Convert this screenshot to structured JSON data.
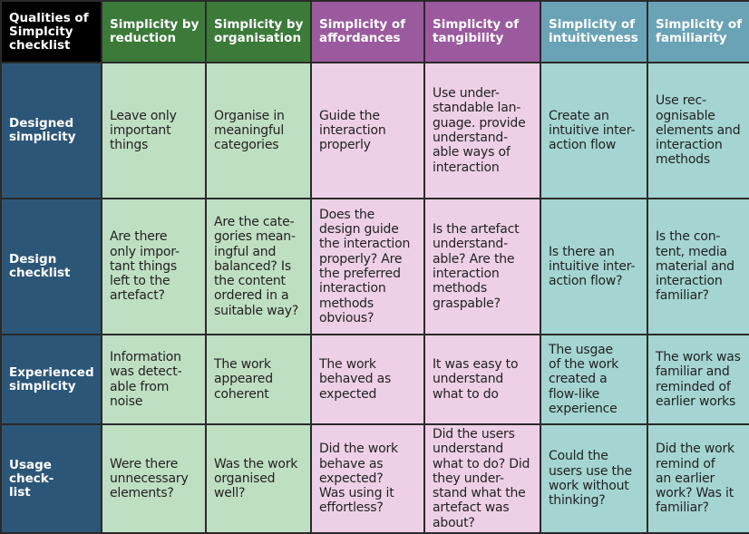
{
  "colors": {
    "corner": "#000000",
    "green_header": "#3b7a39",
    "purple_header": "#9a5a9d",
    "teal_header": "#6aa3b6",
    "row_header": "#2c5678",
    "green_cell": "#bfdfc2",
    "purple_cell": "#eed0e6",
    "teal_cell": "#a4d5d2"
  },
  "corner": "Qualities of\nSimplcity\nchecklist",
  "columns": [
    "Simplicity by\nreduction",
    "Simplicity by\norganisation",
    "Simplicity of\naffordances",
    "Simplicity of\ntangibility",
    "Simplicity of\nintuitiveness",
    "Simplicity of\nfamiliarity"
  ],
  "rows": [
    {
      "label": "Designed\nsimplicity",
      "cells": [
        "Leave only\nimportant\nthings",
        "Organise in\nmeaningful\ncategories",
        "Guide the\ninteraction\nproperly",
        "Use under-\nstandable lan-\nguage. provide\nunderstand-\nable ways of\ninteraction",
        "Create an\nintuitive inter-\naction flow",
        "Use rec-\nognisable\nelements and\ninteraction\nmethods"
      ]
    },
    {
      "label": "Design\nchecklist",
      "cells": [
        "Are there\nonly impor-\ntant things\nleft to the\nartefact?",
        "Are the cate-\ngories mean-\ningful and\nbalanced? Is\nthe content\nordered in a\nsuitable way?",
        "Does the\ndesign guide\nthe interaction\nproperly? Are\nthe preferred\ninteraction\nmethods\nobvious?",
        "Is the artefact\nunderstand-\nable? Are the\ninteraction\nmethods\ngraspable?",
        "Is there an\nintuitive inter-\naction flow?",
        "Is the con-\ntent, media\nmaterial and\ninteraction\nfamiliar?"
      ]
    },
    {
      "label": "Experienced\nsimplicity",
      "cells": [
        "Information\nwas detect-\nable from\nnoise",
        "The work\nappeared\ncoherent",
        "The work\nbehaved as\nexpected",
        "It was easy to\nunderstand\nwhat to do",
        "The usgae\nof the work\ncreated a\nflow-like\nexperience",
        "The work was\nfamiliar and\nreminded of\nearlier works"
      ]
    },
    {
      "label": "Usage check-\nlist",
      "cells": [
        "Were there\nunnecessary\nelements?",
        "Was the work\norganised\nwell?",
        "Did the work\nbehave as\nexpected?\nWas using it\neffortless?",
        "Did the users\nunderstand\nwhat to do? Did\nthey under-\nstand what the\nartefact was\nabout?",
        "Could the\nusers use the\nwork without\nthinking?",
        "Did the work\nremind of\nan earlier\nwork? Was it\nfamiliar?"
      ]
    }
  ]
}
